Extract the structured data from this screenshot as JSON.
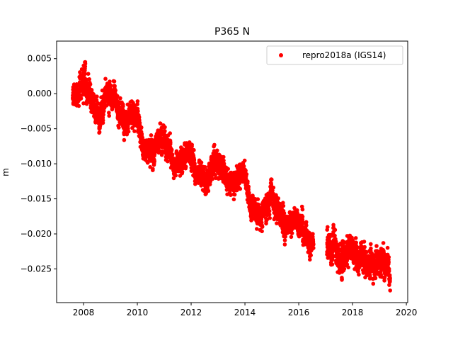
{
  "chart_data": {
    "type": "scatter",
    "title": "P365 N",
    "xlabel": "",
    "ylabel": "m",
    "xlim": [
      2007.0,
      2020.05
    ],
    "ylim": [
      -0.0298,
      0.0075
    ],
    "xticks": [
      2008,
      2010,
      2012,
      2014,
      2016,
      2018,
      2020
    ],
    "yticks": [
      -0.025,
      -0.02,
      -0.015,
      -0.01,
      -0.005,
      0.0,
      0.005
    ],
    "ytick_labels": [
      "−0.025",
      "−0.020",
      "−0.015",
      "−0.010",
      "−0.005",
      "0.000",
      "0.005"
    ],
    "grid": false,
    "legend_position": "top-right",
    "gaps": [
      [
        2016.55,
        2017.05
      ]
    ],
    "series": [
      {
        "name": "repro2018a (IGS14)",
        "color": "#ff0000",
        "marker": "circle",
        "x": [
          2007.6,
          2007.8,
          2008.0,
          2008.2,
          2008.4,
          2008.6,
          2008.8,
          2009.0,
          2009.2,
          2009.4,
          2009.6,
          2009.8,
          2010.0,
          2010.2,
          2010.4,
          2010.6,
          2010.8,
          2011.0,
          2011.2,
          2011.4,
          2011.6,
          2011.8,
          2012.0,
          2012.2,
          2012.4,
          2012.6,
          2012.8,
          2013.0,
          2013.2,
          2013.4,
          2013.6,
          2013.8,
          2014.0,
          2014.2,
          2014.4,
          2014.6,
          2014.8,
          2015.0,
          2015.2,
          2015.4,
          2015.6,
          2015.8,
          2016.0,
          2016.2,
          2016.5,
          2017.1,
          2017.3,
          2017.5,
          2017.7,
          2017.9,
          2018.1,
          2018.3,
          2018.5,
          2018.7,
          2018.9,
          2019.1,
          2019.3,
          2019.4
        ],
        "y": [
          -0.0005,
          0.001,
          0.002,
          0.0005,
          -0.0015,
          -0.0025,
          -0.001,
          0.0005,
          -0.0015,
          -0.0035,
          -0.0045,
          -0.003,
          -0.0035,
          -0.0075,
          -0.0085,
          -0.008,
          -0.007,
          -0.0065,
          -0.008,
          -0.0095,
          -0.01,
          -0.0085,
          -0.008,
          -0.011,
          -0.012,
          -0.0115,
          -0.0095,
          -0.01,
          -0.011,
          -0.013,
          -0.0125,
          -0.012,
          -0.0105,
          -0.0165,
          -0.0175,
          -0.017,
          -0.0155,
          -0.015,
          -0.017,
          -0.018,
          -0.019,
          -0.0185,
          -0.019,
          -0.02,
          -0.021,
          -0.0215,
          -0.0225,
          -0.023,
          -0.0235,
          -0.0215,
          -0.023,
          -0.0235,
          -0.024,
          -0.025,
          -0.0235,
          -0.024,
          -0.025,
          -0.0265
        ],
        "spread": [
          0.0012,
          0.0013,
          0.0015,
          0.0013,
          0.0012,
          0.0012,
          0.0013,
          0.0014,
          0.0013,
          0.0013,
          0.0012,
          0.0012,
          0.0012,
          0.001,
          0.001,
          0.0011,
          0.0012,
          0.0013,
          0.0012,
          0.0012,
          0.0012,
          0.0012,
          0.0013,
          0.0012,
          0.0011,
          0.0012,
          0.0013,
          0.0013,
          0.0012,
          0.0012,
          0.0012,
          0.0013,
          0.0013,
          0.0012,
          0.0012,
          0.0012,
          0.0013,
          0.0013,
          0.0012,
          0.0012,
          0.0012,
          0.0012,
          0.0012,
          0.0012,
          0.001,
          0.0012,
          0.0013,
          0.0014,
          0.0014,
          0.0012,
          0.0012,
          0.0013,
          0.0013,
          0.0013,
          0.0013,
          0.0013,
          0.0013,
          0.0012
        ]
      }
    ]
  }
}
